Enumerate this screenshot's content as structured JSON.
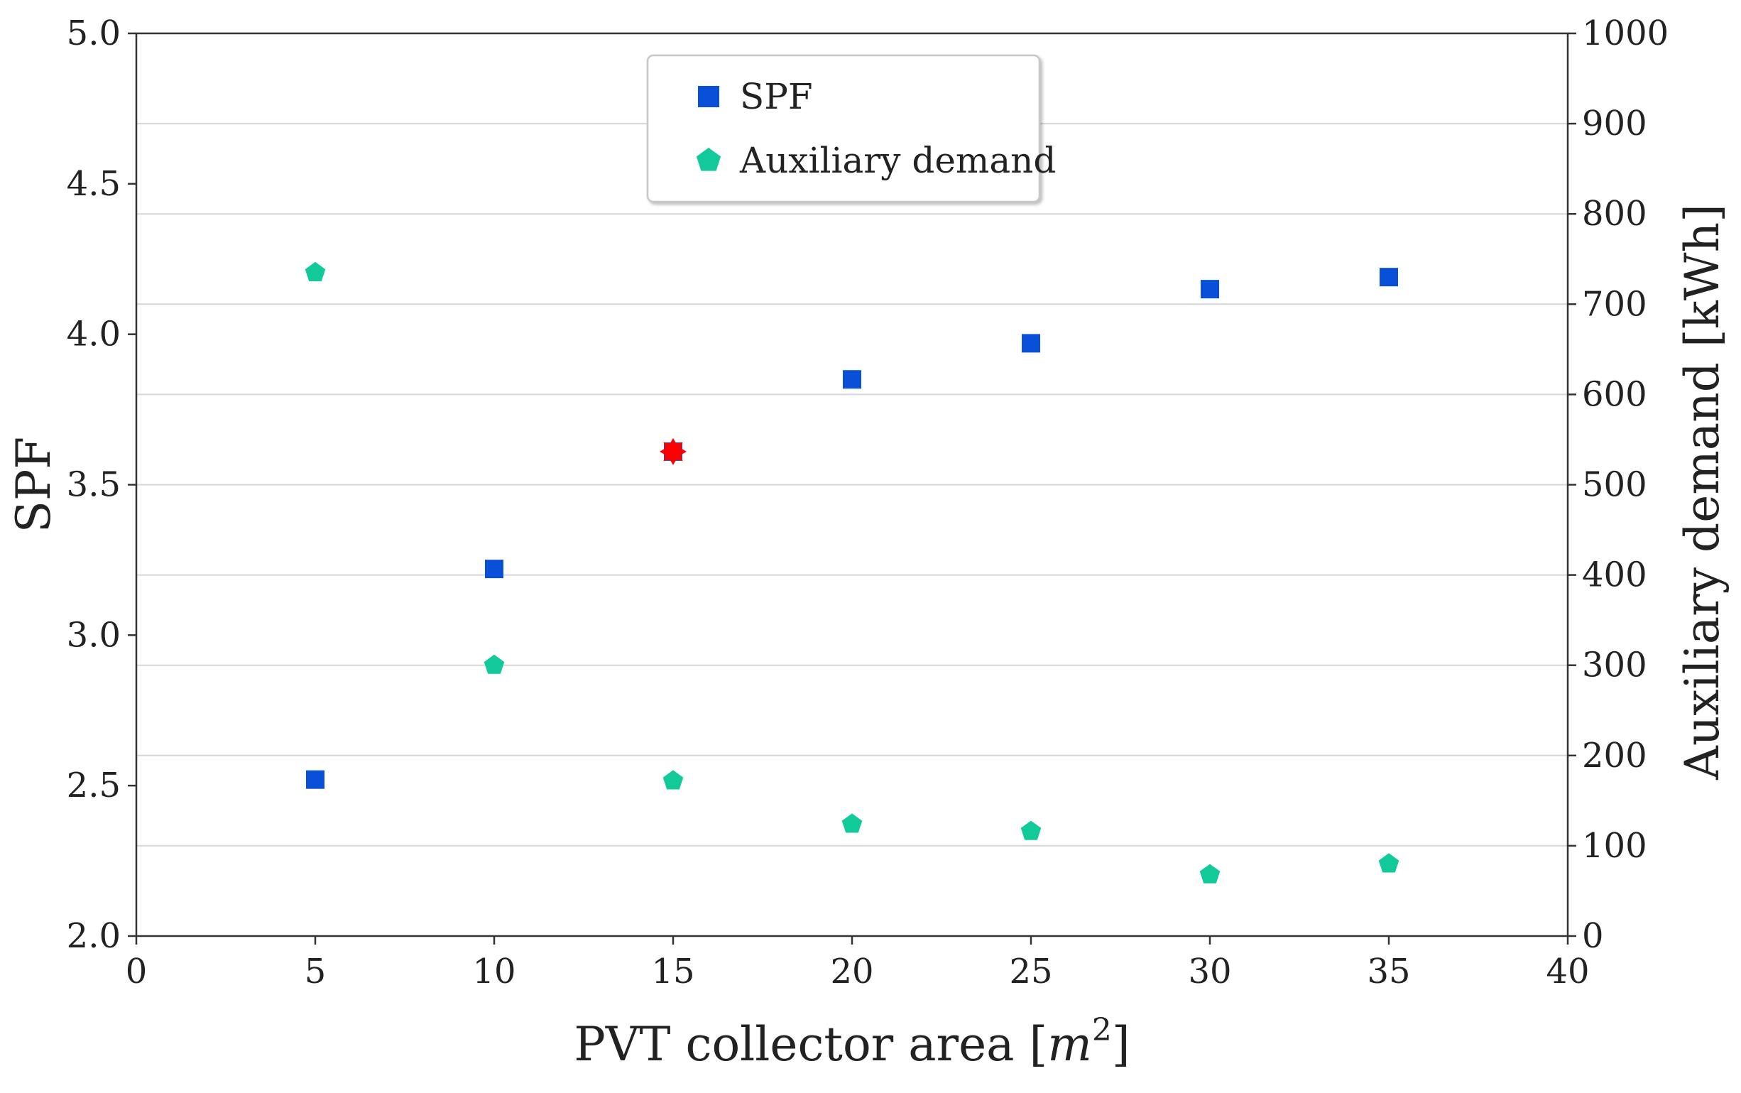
{
  "chart_data": {
    "type": "scatter",
    "title": "",
    "xlabel": "PVT collector area",
    "xlabel_unit_base": "m",
    "xlabel_unit_exp": "2",
    "ylabel": "SPF",
    "y2label": "Auxiliary demand [kWh]",
    "xlim": [
      0,
      40
    ],
    "ylim": [
      2.0,
      5.0
    ],
    "y2lim": [
      0,
      1000
    ],
    "x_ticks": [
      "0",
      "5",
      "10",
      "15",
      "20",
      "25",
      "30",
      "35",
      "40"
    ],
    "x_tick_values": [
      0,
      5,
      10,
      15,
      20,
      25,
      30,
      35,
      40
    ],
    "y_ticks": [
      "2.0",
      "2.5",
      "3.0",
      "3.5",
      "4.0",
      "4.5",
      "5.0"
    ],
    "y_tick_values": [
      2.0,
      2.5,
      3.0,
      3.5,
      4.0,
      4.5,
      5.0
    ],
    "y2_ticks": [
      "0",
      "100",
      "200",
      "300",
      "400",
      "500",
      "600",
      "700",
      "800",
      "900",
      "1000"
    ],
    "y2_tick_values": [
      0,
      100,
      200,
      300,
      400,
      500,
      600,
      700,
      800,
      900,
      1000
    ],
    "grid": true,
    "legend_position": "top-center",
    "series": [
      {
        "name": "SPF",
        "axis": "left",
        "marker": "square",
        "color": "#0a4fd8",
        "x": [
          5,
          10,
          15,
          20,
          25,
          30,
          35
        ],
        "y": [
          2.52,
          3.22,
          3.61,
          3.85,
          3.97,
          4.15,
          4.19
        ]
      },
      {
        "name": "Auxiliary demand",
        "axis": "right",
        "marker": "pentagon",
        "color": "#12c99a",
        "x": [
          5,
          10,
          15,
          20,
          25,
          30,
          35
        ],
        "y": [
          735,
          300,
          172,
          124,
          116,
          68,
          80
        ]
      }
    ],
    "highlight": {
      "name": "selected point",
      "marker": "star",
      "color": "#ff0000",
      "x": 15,
      "y": 3.61
    }
  }
}
